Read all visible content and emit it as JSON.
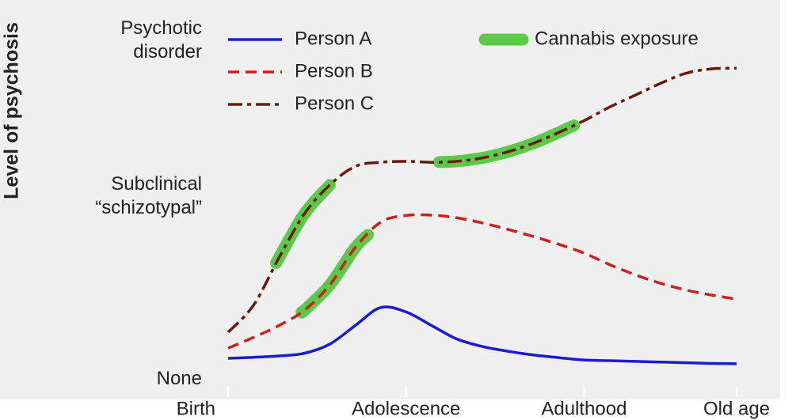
{
  "chart_data": {
    "type": "line",
    "ylabel": "Level of psychosis",
    "x": [
      0,
      5,
      10,
      15,
      20,
      25,
      30,
      35,
      40,
      45,
      50,
      55,
      60,
      65,
      70,
      75,
      80,
      85,
      90,
      95,
      100
    ],
    "xlim": [
      0,
      100
    ],
    "xticks": [
      {
        "value": 0,
        "label": "Birth"
      },
      {
        "value": 35,
        "label": "Adolescence"
      },
      {
        "value": 70,
        "label": "Adulthood"
      },
      {
        "value": 100,
        "label": "Old age"
      }
    ],
    "ylim": [
      0,
      100
    ],
    "yticks": [
      {
        "value": 0,
        "label": "None"
      },
      {
        "value": 54,
        "label": "Subclinical\n“schizotypal”"
      },
      {
        "value": 100,
        "label": "Psychotic\ndisorder"
      }
    ],
    "series": [
      {
        "name": "Person A",
        "color": "#1a1ad4",
        "style": "solid",
        "values": [
          6.3,
          6.6,
          7.0,
          7.8,
          10.5,
          16,
          21.3,
          20,
          16,
          12,
          9.8,
          8.4,
          7.3,
          6.5,
          5.8,
          5.6,
          5.4,
          5.2,
          5,
          4.8,
          4.7
        ],
        "exposure": []
      },
      {
        "name": "Person B",
        "color": "#cc1f1f",
        "style": "dashed",
        "values": [
          9.3,
          12.5,
          16,
          20.5,
          28,
          39,
          46.5,
          48.5,
          48.6,
          47.8,
          46.3,
          44.4,
          42.3,
          40,
          37.4,
          34,
          31,
          28.5,
          26.5,
          25,
          23.8
        ],
        "exposure": [
          [
            14.5,
            27.5
          ]
        ]
      },
      {
        "name": "Person C",
        "color": "#6b1a0a",
        "style": "dashdot",
        "values": [
          14,
          22,
          36,
          49,
          57.5,
          63,
          64.2,
          64.5,
          64.2,
          64.5,
          65.5,
          67.3,
          69.8,
          73,
          76.5,
          80.5,
          84,
          87.5,
          90.5,
          91.8,
          92
        ],
        "exposure": [
          [
            9.5,
            20
          ],
          [
            41.5,
            68
          ]
        ]
      }
    ],
    "exposure_legend": {
      "name": "Cannabis exposure",
      "color": "#5cc94a"
    }
  }
}
